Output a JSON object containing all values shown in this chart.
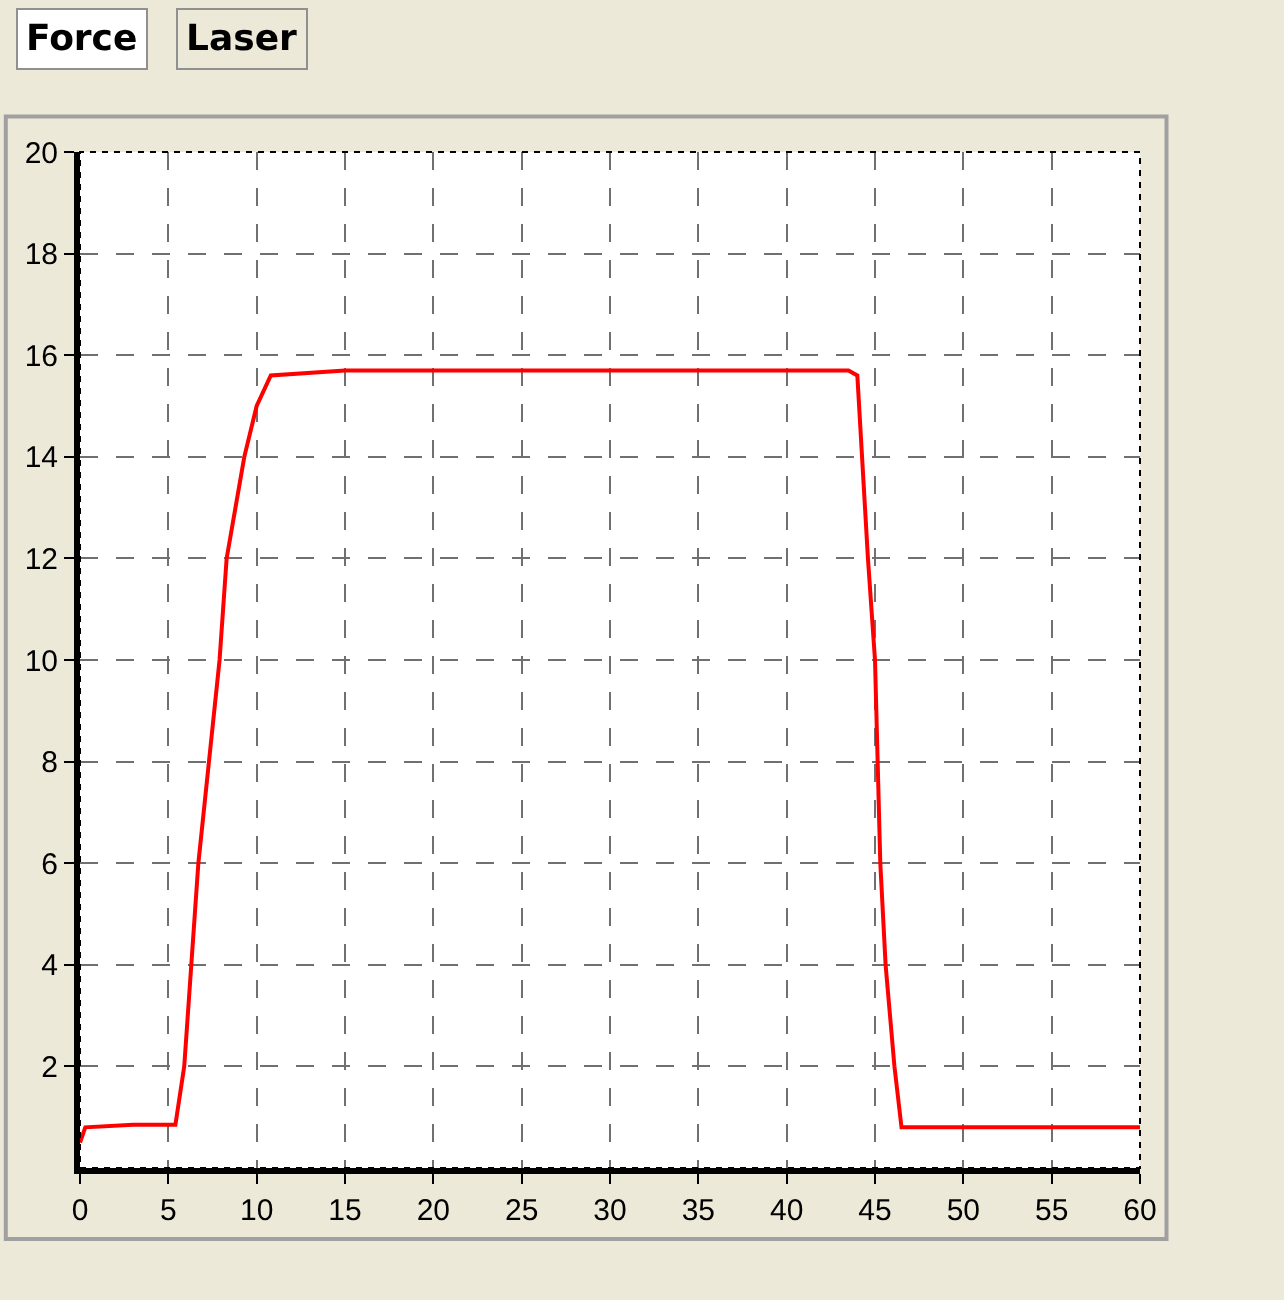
{
  "chart_data": {
    "type": "line",
    "annotations": [
      "Force",
      "Laser"
    ],
    "x": [
      0,
      0.3,
      3,
      5.4,
      5.9,
      6.7,
      7.3,
      7.9,
      8.3,
      9.3,
      10,
      10.8,
      15,
      20,
      25,
      30,
      35,
      40,
      43.5,
      44,
      44.6,
      45,
      45.3,
      45.6,
      46.1,
      46.5,
      50,
      55,
      60
    ],
    "series": [
      {
        "color": "#ff0000",
        "values": [
          0.5,
          0.8,
          0.85,
          0.85,
          2,
          6,
          8,
          10,
          12,
          14,
          15,
          15.6,
          15.7,
          15.7,
          15.7,
          15.7,
          15.7,
          15.7,
          15.7,
          15.6,
          12,
          10,
          6,
          4,
          2,
          0.8,
          0.8,
          0.8,
          0.8
        ]
      }
    ],
    "xlim": [
      0,
      60
    ],
    "xticks": [
      0,
      5,
      10,
      15,
      20,
      25,
      30,
      35,
      40,
      45,
      50,
      55,
      60
    ],
    "ylim": [
      0,
      20
    ],
    "yticks": [
      2,
      4,
      6,
      8,
      10,
      12,
      14,
      16,
      18,
      20
    ],
    "grid": true,
    "line_style": "solid",
    "marker": "none",
    "legend": false
  }
}
